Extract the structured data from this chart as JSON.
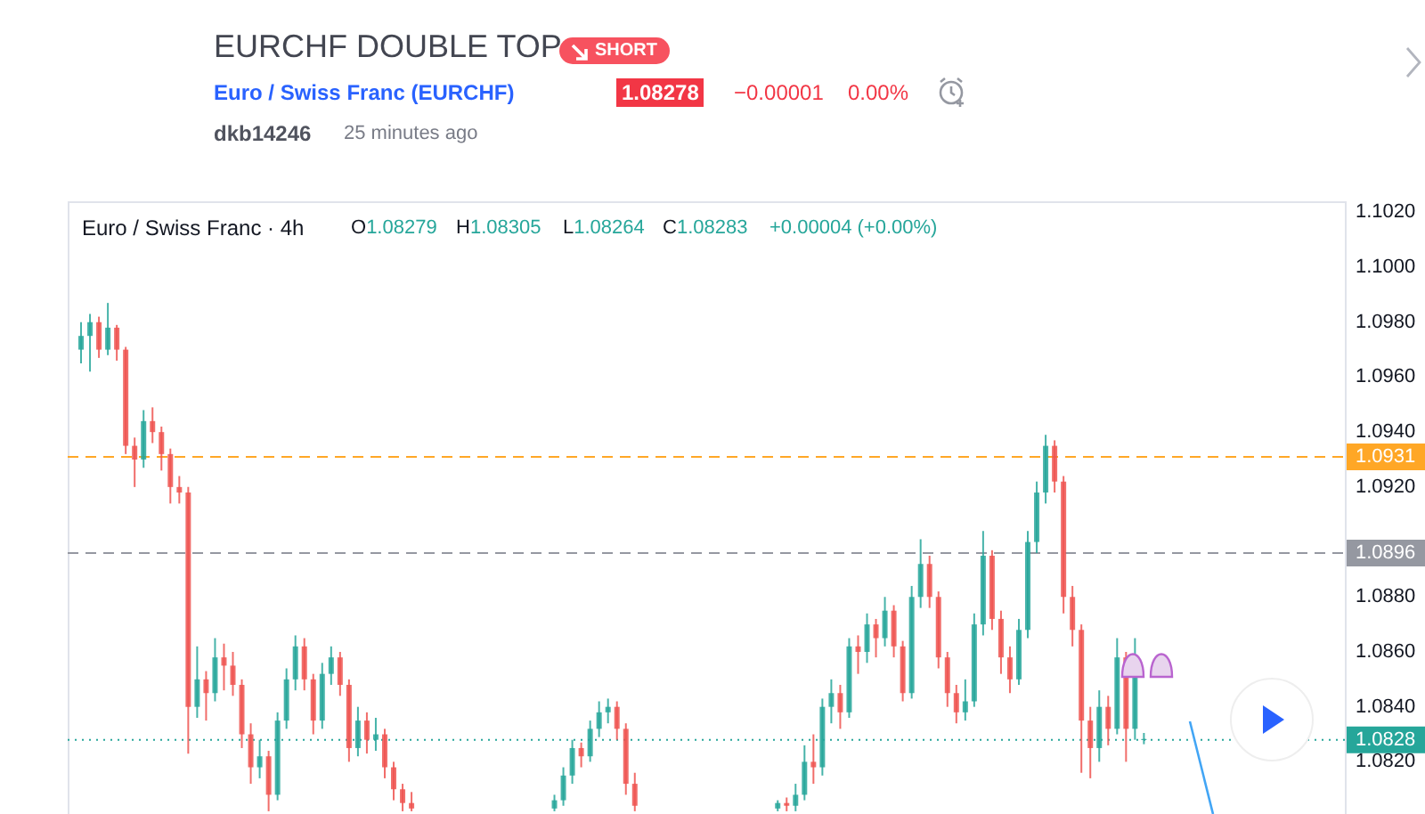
{
  "chart_data": {
    "type": "candlestick",
    "title": "EURCHF DOUBLE TOP",
    "subtitle": "Euro / Swiss Franc (EURCHF)",
    "annotations": [
      "SHORT",
      "1.08278",
      "−0.00001",
      "0.00%",
      "dkb14246",
      "25 minutes ago",
      "Euro / Swiss Franc · 4h",
      "O1.08279",
      "H1.08305",
      "L1.08264",
      "C1.08283",
      "+0.00004 (+0.00%)"
    ],
    "categories": [
      null,
      null,
      null,
      null,
      null,
      null,
      null,
      null,
      null,
      null,
      null,
      null,
      null,
      null,
      null,
      null,
      null,
      null,
      null,
      null,
      null,
      null,
      null,
      null,
      null,
      null,
      null,
      null,
      null,
      null,
      null,
      null,
      null,
      null,
      null,
      null,
      null,
      null,
      null,
      null,
      null,
      null,
      null,
      null,
      null,
      null,
      null,
      null,
      null,
      null,
      null,
      null,
      null,
      null,
      null,
      null,
      null,
      null,
      null,
      null,
      null,
      null,
      null,
      null,
      null,
      null,
      null,
      null,
      null,
      null,
      null,
      null,
      null,
      null,
      null,
      null,
      null,
      null,
      null,
      null,
      null,
      null,
      null,
      null,
      null,
      null,
      null,
      null,
      null,
      null,
      null,
      null,
      null,
      null,
      null,
      null,
      null,
      null,
      null,
      null,
      null,
      null,
      null,
      null,
      null,
      null,
      null,
      null,
      null,
      null,
      null,
      null,
      null,
      null,
      null,
      null,
      null,
      null,
      null,
      null,
      null,
      null,
      null,
      null,
      null,
      null,
      null,
      null,
      null,
      null,
      null,
      null,
      null,
      null,
      null,
      null,
      null,
      null,
      null,
      null,
      null
    ],
    "ohlc": [
      [
        1.097,
        1.098,
        1.0965,
        1.0975
      ],
      [
        1.0975,
        1.0983,
        1.0962,
        1.098
      ],
      [
        1.098,
        1.0982,
        1.0967,
        1.097
      ],
      [
        1.097,
        1.0987,
        1.0968,
        1.0978
      ],
      [
        1.0978,
        1.0979,
        1.0966,
        1.097
      ],
      [
        1.097,
        1.0971,
        1.0932,
        1.0935
      ],
      [
        1.0935,
        1.0938,
        1.092,
        1.093
      ],
      [
        1.093,
        1.0948,
        1.0927,
        1.0944
      ],
      [
        1.0944,
        1.0949,
        1.0936,
        1.094
      ],
      [
        1.094,
        1.0942,
        1.0926,
        1.0932
      ],
      [
        1.0932,
        1.0934,
        1.0914,
        1.092
      ],
      [
        1.092,
        1.0924,
        1.0914,
        1.0918
      ],
      [
        1.0918,
        1.092,
        1.0823,
        1.084
      ],
      [
        1.084,
        1.0862,
        1.0836,
        1.085
      ],
      [
        1.085,
        1.0853,
        1.0835,
        1.0845
      ],
      [
        1.0845,
        1.0865,
        1.0842,
        1.0858
      ],
      [
        1.0858,
        1.0863,
        1.0846,
        1.0855
      ],
      [
        1.0855,
        1.086,
        1.0844,
        1.0848
      ],
      [
        1.0848,
        1.085,
        1.0825,
        1.083
      ],
      [
        1.083,
        1.0834,
        1.0812,
        1.0818
      ],
      [
        1.0818,
        1.0828,
        1.0814,
        1.0822
      ],
      [
        1.0822,
        1.0824,
        1.0802,
        1.0808
      ],
      [
        1.0808,
        1.0838,
        1.0806,
        1.0835
      ],
      [
        1.0835,
        1.0854,
        1.0832,
        1.085
      ],
      [
        1.085,
        1.0866,
        1.0846,
        1.0862
      ],
      [
        1.0862,
        1.0865,
        1.0846,
        1.085
      ],
      [
        1.085,
        1.0852,
        1.083,
        1.0835
      ],
      [
        1.0835,
        1.0856,
        1.0832,
        1.0852
      ],
      [
        1.0852,
        1.0862,
        1.0848,
        1.0858
      ],
      [
        1.0858,
        1.086,
        1.0844,
        1.0848
      ],
      [
        1.0848,
        1.085,
        1.082,
        1.0825
      ],
      [
        1.0825,
        1.084,
        1.0822,
        1.0835
      ],
      [
        1.0835,
        1.0838,
        1.0823,
        1.0828
      ],
      [
        1.0828,
        1.0836,
        1.0824,
        1.083
      ],
      [
        1.083,
        1.0832,
        1.0814,
        1.0818
      ],
      [
        1.0818,
        1.082,
        1.0806,
        1.081
      ],
      [
        1.081,
        1.0812,
        1.0802,
        1.0805
      ],
      [
        1.0805,
        1.0809,
        1.0802,
        1.0803
      ],
      null,
      null,
      null,
      null,
      null,
      null,
      null,
      null,
      null,
      null,
      null,
      null,
      null,
      null,
      null,
      [
        1.0803,
        1.0808,
        1.0802,
        1.0806
      ],
      [
        1.0806,
        1.0818,
        1.0804,
        1.0815
      ],
      [
        1.0815,
        1.0828,
        1.0812,
        1.0825
      ],
      [
        1.0825,
        1.0827,
        1.0818,
        1.0822
      ],
      [
        1.0822,
        1.0835,
        1.082,
        1.0832
      ],
      [
        1.0832,
        1.0842,
        1.0829,
        1.0838
      ],
      [
        1.0838,
        1.0843,
        1.0834,
        1.084
      ],
      [
        1.084,
        1.0842,
        1.0828,
        1.0832
      ],
      [
        1.0832,
        1.0834,
        1.0808,
        1.0812
      ],
      [
        1.0812,
        1.0816,
        1.0802,
        1.0804
      ],
      null,
      null,
      null,
      null,
      null,
      null,
      null,
      null,
      null,
      null,
      null,
      null,
      null,
      null,
      null,
      [
        1.0803,
        1.0806,
        1.0802,
        1.0805
      ],
      [
        1.0805,
        1.0807,
        1.0802,
        1.0804
      ],
      [
        1.0804,
        1.0812,
        1.0802,
        1.0808
      ],
      [
        1.0808,
        1.0826,
        1.0806,
        1.082
      ],
      [
        1.082,
        1.083,
        1.0812,
        1.0818
      ],
      [
        1.0818,
        1.0843,
        1.0815,
        1.084
      ],
      [
        1.084,
        1.085,
        1.0834,
        1.0845
      ],
      [
        1.0845,
        1.0848,
        1.0832,
        1.0838
      ],
      [
        1.0838,
        1.0865,
        1.0836,
        1.0862
      ],
      [
        1.0862,
        1.0866,
        1.0852,
        1.086
      ],
      [
        1.086,
        1.0874,
        1.0856,
        1.087
      ],
      [
        1.087,
        1.0872,
        1.0858,
        1.0865
      ],
      [
        1.0865,
        1.088,
        1.0862,
        1.0875
      ],
      [
        1.0875,
        1.0877,
        1.0858,
        1.0862
      ],
      [
        1.0862,
        1.0864,
        1.0842,
        1.0845
      ],
      [
        1.0845,
        1.0884,
        1.0843,
        1.088
      ],
      [
        1.088,
        1.0901,
        1.0876,
        1.0892
      ],
      [
        1.0892,
        1.0895,
        1.0876,
        1.088
      ],
      [
        1.088,
        1.0882,
        1.0854,
        1.0858
      ],
      [
        1.0858,
        1.086,
        1.084,
        1.0845
      ],
      [
        1.0845,
        1.0848,
        1.0834,
        1.0838
      ],
      [
        1.0838,
        1.085,
        1.0835,
        1.0842
      ],
      [
        1.0842,
        1.0874,
        1.084,
        1.087
      ],
      [
        1.087,
        1.0904,
        1.0866,
        1.0895
      ],
      [
        1.0895,
        1.0897,
        1.0868,
        1.0872
      ],
      [
        1.0872,
        1.0875,
        1.0852,
        1.0858
      ],
      [
        1.0858,
        1.0862,
        1.0845,
        1.085
      ],
      [
        1.085,
        1.0872,
        1.0848,
        1.0868
      ],
      [
        1.0868,
        1.0904,
        1.0865,
        1.09
      ],
      [
        1.09,
        1.0922,
        1.0896,
        1.0918
      ],
      [
        1.0918,
        1.0939,
        1.0914,
        1.0935
      ],
      [
        1.0935,
        1.0937,
        1.0918,
        1.0922
      ],
      [
        1.0922,
        1.0924,
        1.0874,
        1.088
      ],
      [
        1.088,
        1.0884,
        1.0862,
        1.0868
      ],
      [
        1.0868,
        1.087,
        1.0816,
        1.0835
      ],
      [
        1.0835,
        1.084,
        1.0814,
        1.0825
      ],
      [
        1.0825,
        1.0846,
        1.082,
        1.084
      ],
      [
        1.084,
        1.0844,
        1.0826,
        1.0832
      ],
      [
        1.0832,
        1.0865,
        1.083,
        1.0858
      ],
      [
        1.0858,
        1.086,
        1.082,
        1.0832
      ],
      [
        1.0832,
        1.0865,
        1.0828,
        1.0858
      ],
      [
        1.08279,
        1.08305,
        1.08264,
        1.08283
      ],
      null,
      null,
      null,
      null,
      null,
      null,
      null,
      null,
      null,
      null,
      null,
      null,
      null,
      null,
      null,
      null,
      null,
      null,
      null,
      null,
      null
    ],
    "colors": [
      "#26a69a",
      "#26a69a",
      "#ef5350",
      "#26a69a",
      "#ef5350",
      "#ef5350",
      "#ef5350",
      "#26a69a",
      "#ef5350",
      "#ef5350",
      "#ef5350",
      "#ef5350",
      "#ef5350",
      "#26a69a",
      "#ef5350",
      "#26a69a",
      "#ef5350",
      "#ef5350",
      "#ef5350",
      "#ef5350",
      "#26a69a",
      "#ef5350",
      "#26a69a",
      "#26a69a",
      "#26a69a",
      "#ef5350",
      "#ef5350",
      "#26a69a",
      "#26a69a",
      "#ef5350",
      "#ef5350",
      "#26a69a",
      "#ef5350",
      "#26a69a",
      "#ef5350",
      "#ef5350",
      "#ef5350",
      "#ef5350",
      null,
      null,
      null,
      null,
      null,
      null,
      null,
      null,
      null,
      null,
      null,
      null,
      null,
      null,
      null,
      "#26a69a",
      "#26a69a",
      "#26a69a",
      "#ef5350",
      "#26a69a",
      "#26a69a",
      "#26a69a",
      "#ef5350",
      "#ef5350",
      "#ef5350",
      null,
      null,
      null,
      null,
      null,
      null,
      null,
      null,
      null,
      null,
      null,
      null,
      null,
      null,
      null,
      "#26a69a",
      "#ef5350",
      "#26a69a",
      "#26a69a",
      "#ef5350",
      "#26a69a",
      "#26a69a",
      "#ef5350",
      "#26a69a",
      "#ef5350",
      "#26a69a",
      "#ef5350",
      "#26a69a",
      "#ef5350",
      "#ef5350",
      "#26a69a",
      "#26a69a",
      "#ef5350",
      "#ef5350",
      "#ef5350",
      "#ef5350",
      "#26a69a",
      "#26a69a",
      "#26a69a",
      "#ef5350",
      "#ef5350",
      "#ef5350",
      "#26a69a",
      "#26a69a",
      "#26a69a",
      "#26a69a",
      "#ef5350",
      "#ef5350",
      "#ef5350",
      "#ef5350",
      "#ef5350",
      "#26a69a",
      "#ef5350",
      "#26a69a",
      "#ef5350",
      "#26a69a",
      "#26a69a",
      null,
      null,
      null,
      null,
      null,
      null,
      null,
      null,
      null,
      null,
      null,
      null,
      null,
      null,
      null,
      null,
      null,
      null,
      null,
      null,
      null
    ],
    "ylim": [
      1.0801,
      1.1024
    ],
    "yticks": [
      {
        "value": 1.082,
        "label": "1.0820"
      },
      {
        "value": 1.084,
        "label": "1.0840"
      },
      {
        "value": 1.086,
        "label": "1.0860"
      },
      {
        "value": 1.088,
        "label": "1.0880"
      },
      {
        "value": 1.092,
        "label": "1.0920"
      },
      {
        "value": 1.094,
        "label": "1.0940"
      },
      {
        "value": 1.096,
        "label": "1.0960"
      },
      {
        "value": 1.098,
        "label": "1.0980"
      },
      {
        "value": 1.1,
        "label": "1.1000"
      },
      {
        "value": 1.102,
        "label": "1.1020"
      }
    ],
    "tick_labels": "y",
    "ref_lines": [
      {
        "axis": "y",
        "value": 1.0931,
        "label": "1.0931",
        "color": "#ffa726",
        "line_style": "dashed"
      },
      {
        "axis": "y",
        "value": 1.0896,
        "label": "1.0896",
        "color": "#9598a1",
        "line_style": "dashed"
      },
      {
        "axis": "y",
        "value": 1.0828,
        "label": "1.0828",
        "color": "#26a69a",
        "line_style": "dotted"
      }
    ]
  }
}
